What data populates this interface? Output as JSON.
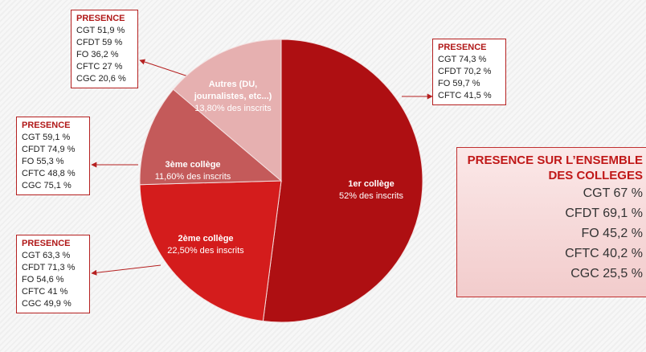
{
  "chart_data": {
    "type": "pie",
    "categories": [
      "1er collège",
      "2ème collège",
      "3ème collège",
      "Autres (DU, journalistes, etc...)"
    ],
    "values": [
      52,
      22.5,
      11.6,
      13.8
    ],
    "value_labels": [
      "52% des inscrits",
      "22,50% des inscrits",
      "11,60% des inscrits",
      "13,80% des inscrits"
    ],
    "colors": [
      "#ae0f12",
      "#d41c1c",
      "#c45a5a",
      "#e6b0b0"
    ]
  },
  "annotations": [
    {
      "title": "PRESENCE",
      "lines": [
        "CGT 74,3 %",
        "CFDT 70,2 %",
        "FO 59,7 %",
        "CFTC 41,5 %"
      ]
    },
    {
      "title": "PRESENCE",
      "lines": [
        "CGT 63,3 %",
        "CFDT 71,3 %",
        "FO 54,6 %",
        "CFTC 41 %",
        "CGC 49,9 %"
      ]
    },
    {
      "title": "PRESENCE",
      "lines": [
        "CGT 59,1 %",
        "CFDT 74,9 %",
        "FO 55,3 %",
        "CFTC 48,8 %",
        "CGC 75,1 %"
      ]
    },
    {
      "title": "PRESENCE",
      "lines": [
        "CGT 51,9 %",
        "CFDT 59 %",
        "FO 36,2 %",
        "CFTC 27 %",
        "CGC 20,6 %"
      ]
    }
  ],
  "summary": {
    "title": "PRESENCE SUR L’ENSEMBLE DES COLLEGES",
    "lines": [
      "CGT 67 %",
      "CFDT 69,1 %",
      "FO 45,2 %",
      "CFTC 40,2 %",
      "CGC 25,5 %"
    ]
  }
}
